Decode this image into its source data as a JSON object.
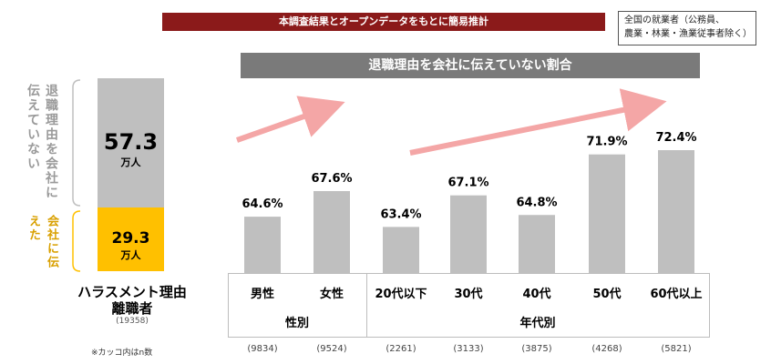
{
  "header": {
    "banner": "本調査結果とオープンデータをもとに簡易推計",
    "scope_note": "全国の就業者（公務員、\n農業・林業・漁業従事者除く）"
  },
  "stack": {
    "not_told_label": "退職理由を会社に伝えていない",
    "told_label": "会社に伝えた",
    "not_told_value": "57.3",
    "told_value": "29.3",
    "unit": "万人",
    "caption_line1": "ハラスメント理由",
    "caption_line2": "離職者",
    "n": "(19358)",
    "colors": {
      "not_told": "#bfbfbf",
      "told": "#ffc000"
    }
  },
  "footnote": "※カッコ内はn数",
  "chart_data": {
    "type": "bar",
    "title": "退職理由を会社に伝えていない割合",
    "categories": [
      "男性",
      "女性",
      "20代以下",
      "30代",
      "40代",
      "50代",
      "60代以上"
    ],
    "values": [
      64.6,
      67.6,
      63.4,
      67.1,
      64.8,
      71.9,
      72.4
    ],
    "value_labels": [
      "64.6%",
      "67.6%",
      "63.4%",
      "67.1%",
      "64.8%",
      "71.9%",
      "72.4%"
    ],
    "groups": [
      {
        "label": "性別",
        "count": 2
      },
      {
        "label": "年代別",
        "count": 5
      }
    ],
    "n": [
      "(9834)",
      "(9524)",
      "(2261)",
      "(3133)",
      "(3875)",
      "(4268)",
      "(5821)"
    ],
    "ylim": [
      58,
      74
    ],
    "bar_color": "#bfbfbf",
    "arrow_color": "#f4a6a6"
  }
}
